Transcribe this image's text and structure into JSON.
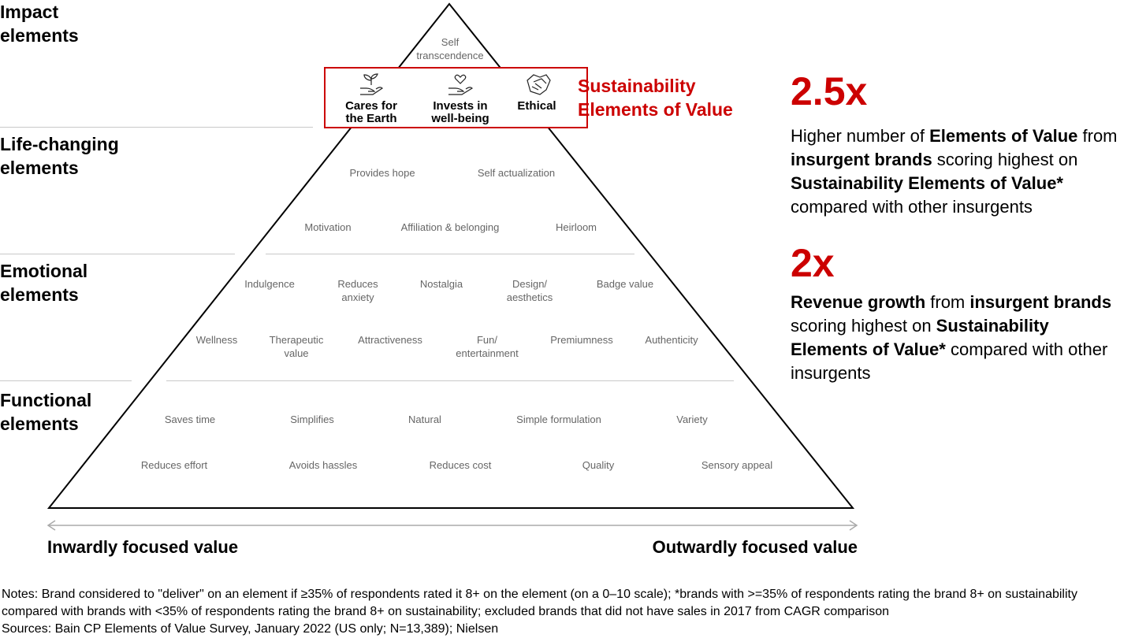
{
  "levels": [
    "Impact elements",
    "Life-changing elements",
    "Emotional elements",
    "Functional elements"
  ],
  "impact": {
    "top": "Self transcendence"
  },
  "sustainability": {
    "title_line1": "Sustainability",
    "title_line2": "Elements of Value",
    "items": [
      {
        "label_line1": "Cares for",
        "label_line2": "the Earth",
        "icon": "plant-in-hand-icon"
      },
      {
        "label_line1": "Invests in",
        "label_line2": "well-being",
        "icon": "heart-in-hand-icon"
      },
      {
        "label_line1": "Ethical",
        "label_line2": "",
        "icon": "handshake-icon"
      }
    ]
  },
  "life_changing": [
    "Provides hope",
    "Self actualization",
    "Motivation",
    "Affiliation & belonging",
    "Heirloom"
  ],
  "emotional": [
    [
      "Indulgence",
      ""
    ],
    [
      "Reduces",
      "anxiety"
    ],
    [
      "Nostalgia",
      ""
    ],
    [
      "Design/",
      "aesthetics"
    ],
    [
      "Badge value",
      ""
    ],
    [
      "Wellness",
      ""
    ],
    [
      "Therapeutic",
      "value"
    ],
    [
      "Attractiveness",
      ""
    ],
    [
      "Fun/",
      "entertainment"
    ],
    [
      "Premiumness",
      ""
    ],
    [
      "Authenticity",
      ""
    ]
  ],
  "functional": [
    "Saves time",
    "Simplifies",
    "Natural",
    "Simple formulation",
    "Variety",
    "Reduces effort",
    "Avoids hassles",
    "Reduces cost",
    "Quality",
    "Sensory appeal"
  ],
  "axis": {
    "left": "Inwardly focused value",
    "right": "Outwardly focused value"
  },
  "stats": [
    {
      "value": "2.5x",
      "text": [
        [
          "Higher number of ",
          false
        ],
        [
          "Elements of Value",
          true
        ],
        [
          " from ",
          false
        ],
        [
          "insurgent brands",
          true
        ],
        [
          " scoring highest on ",
          false
        ],
        [
          "Sustainability Elements of Value*",
          true
        ],
        [
          " compared with other insurgents",
          false
        ]
      ]
    },
    {
      "value": "2x",
      "text": [
        [
          "Revenue growth",
          true
        ],
        [
          " from ",
          false
        ],
        [
          "insurgent brands",
          true
        ],
        [
          " scoring highest on ",
          false
        ],
        [
          "Sustainability Elements of Value*",
          true
        ],
        [
          " compared with other insurgents",
          false
        ]
      ]
    }
  ],
  "notes": "Notes: Brand considered to \"deliver\" on an element if ≥35% of respondents rated it 8+ on the element (on a 0–10 scale); *brands with >=35% of respondents rating the brand 8+ on sustainability compared with brands with <35% of respondents rating the brand 8+ on sustainability; excluded brands that did not have sales in 2017 from CAGR comparison",
  "sources": "Sources: Bain CP Elements of Value Survey, January 2022 (US only; N=13,389); Nielsen",
  "colors": {
    "accent": "#cc0000",
    "element_text": "#666666",
    "divider": "#c8c8c8"
  }
}
